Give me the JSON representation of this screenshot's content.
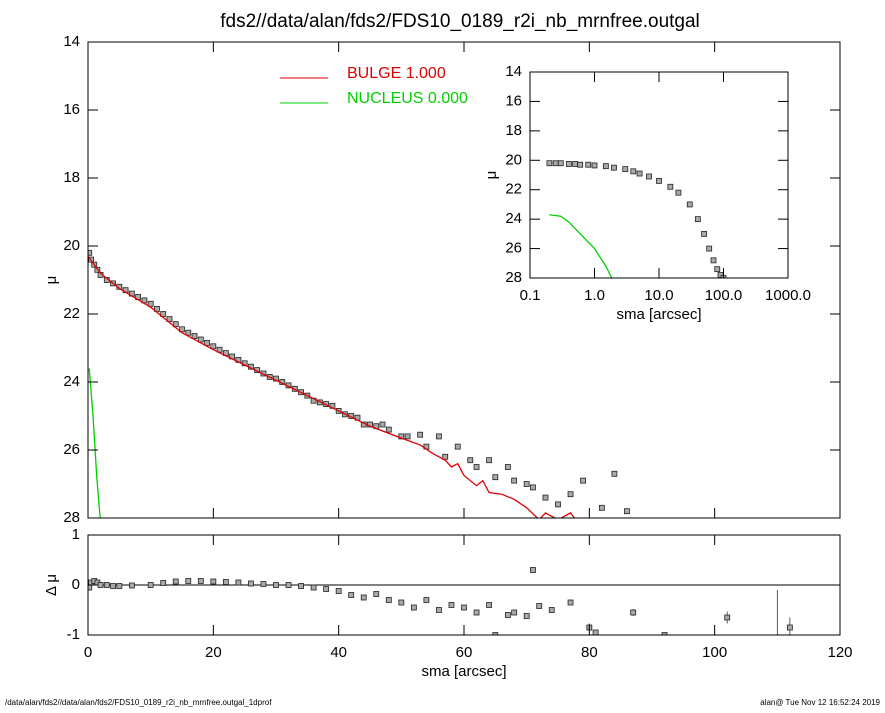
{
  "footer": {
    "left": "/data/alan/fds2//data/alan/fds2/FDS10_0189_r2i_nb_mrnfree.outgal_1dprof",
    "right": "alan@  Tue Nov 12 16:52:24 2019"
  },
  "chart_data": [
    {
      "type": "profile",
      "title": "fds2//data/alan/fds2/FDS10_0189_r2i_nb_mrnfree.outgal",
      "y_label": "μ",
      "ylim": [
        28,
        14
      ],
      "yticks": [
        14,
        16,
        18,
        20,
        22,
        24,
        26,
        28
      ],
      "points": {
        "x": [
          0.2,
          0.5,
          1,
          1.5,
          2,
          3,
          4,
          5,
          6,
          7,
          8,
          9,
          10,
          11,
          12,
          13,
          14,
          15,
          16,
          17,
          18,
          19,
          20,
          21,
          22,
          23,
          24,
          25,
          26,
          27,
          28,
          29,
          30,
          31,
          32,
          33,
          34,
          35,
          36,
          37,
          38,
          39,
          40,
          41,
          42,
          43,
          44,
          45,
          46,
          47,
          48,
          50,
          51,
          53,
          54,
          56,
          57,
          59,
          61,
          62,
          64,
          65,
          67,
          68,
          70,
          71,
          73,
          75,
          77,
          79,
          82,
          84,
          86
        ],
        "values": [
          20.2,
          20.4,
          20.55,
          20.7,
          20.85,
          21.0,
          21.1,
          21.2,
          21.3,
          21.4,
          21.5,
          21.6,
          21.7,
          21.85,
          22.0,
          22.15,
          22.3,
          22.45,
          22.55,
          22.65,
          22.75,
          22.85,
          22.95,
          23.05,
          23.15,
          23.25,
          23.35,
          23.45,
          23.55,
          23.65,
          23.75,
          23.85,
          23.9,
          24.0,
          24.1,
          24.2,
          24.3,
          24.4,
          24.55,
          24.6,
          24.65,
          24.7,
          24.85,
          24.95,
          25.0,
          25.05,
          25.25,
          25.25,
          25.3,
          25.25,
          25.4,
          25.6,
          25.6,
          25.55,
          25.9,
          25.6,
          26.2,
          25.9,
          26.3,
          26.5,
          26.3,
          26.8,
          26.5,
          26.9,
          27.0,
          27.1,
          27.4,
          27.6,
          27.3,
          26.9,
          27.7,
          26.7,
          27.8
        ]
      },
      "series": [
        {
          "name": "BULGE  1.000",
          "color": "#e00000",
          "x": [
            0,
            2,
            5,
            10,
            15,
            20,
            25,
            30,
            35,
            40,
            45,
            50,
            53,
            55,
            57,
            58,
            59,
            60,
            62,
            63,
            64,
            66,
            68,
            70,
            72,
            73,
            75,
            77,
            78
          ],
          "values": [
            20.3,
            20.8,
            21.25,
            21.8,
            22.55,
            23.05,
            23.5,
            23.95,
            24.4,
            24.85,
            25.3,
            25.65,
            25.85,
            26.1,
            26.3,
            26.5,
            26.4,
            26.75,
            27.05,
            26.9,
            27.25,
            27.3,
            27.45,
            27.7,
            28.05,
            27.85,
            28.05,
            27.85,
            28.1
          ]
        },
        {
          "name": "NUCLEUS  0.000",
          "color": "#00d000",
          "x": [
            0.2,
            0.5,
            0.8,
            1.1,
            1.4,
            1.8,
            2.0
          ],
          "values": [
            23.6,
            24.3,
            25.0,
            25.9,
            26.8,
            27.7,
            28.1
          ]
        }
      ]
    },
    {
      "type": "residual",
      "y_label": "Δ μ",
      "x_label": "sma [arcsec]",
      "xlim": [
        0,
        120
      ],
      "xticks": [
        0,
        20,
        40,
        60,
        80,
        100,
        120
      ],
      "ylim": [
        -1,
        1
      ],
      "yticks": [
        -1,
        0,
        1
      ],
      "x": [
        0.2,
        0.5,
        1,
        1.5,
        2,
        3,
        4,
        5,
        7,
        10,
        12,
        14,
        16,
        18,
        20,
        22,
        24,
        26,
        28,
        30,
        32,
        34,
        36,
        38,
        40,
        42,
        44,
        46,
        48,
        50,
        52,
        54,
        56,
        58,
        60,
        62,
        64,
        65,
        67,
        68,
        70,
        71,
        72,
        74,
        77,
        78,
        80,
        81,
        87,
        92,
        102,
        110,
        112
      ],
      "values": [
        -0.05,
        0.05,
        0.08,
        0.05,
        0.0,
        0,
        -0.02,
        -0.02,
        -0.01,
        0,
        0.04,
        0.07,
        0.08,
        0.08,
        0.07,
        0.06,
        0.05,
        0.03,
        0.02,
        0.0,
        0.0,
        -0.02,
        -0.05,
        -0.08,
        -0.12,
        -0.2,
        -0.25,
        -0.18,
        -0.3,
        -0.35,
        -0.45,
        -0.3,
        -0.5,
        -0.4,
        -0.45,
        -0.55,
        -0.4,
        -1.0,
        -0.6,
        -0.55,
        -0.62,
        0.3,
        -0.42,
        -0.5,
        -0.35,
        -1.05,
        -0.85,
        -0.95,
        -0.55,
        -1.0,
        -0.65,
        -1.4,
        -0.85
      ],
      "errors": [
        null,
        null,
        null,
        null,
        null,
        null,
        null,
        null,
        null,
        null,
        null,
        null,
        null,
        null,
        null,
        null,
        null,
        null,
        null,
        null,
        null,
        null,
        null,
        null,
        null,
        null,
        null,
        null,
        null,
        null,
        null,
        null,
        null,
        null,
        null,
        null,
        null,
        null,
        null,
        null,
        null,
        0.05,
        null,
        null,
        0.05,
        null,
        0.08,
        null,
        0.07,
        0.05,
        0.12,
        1.3,
        0.2
      ]
    },
    {
      "type": "profile-log",
      "y_label": "μ",
      "x_label": "sma [arcsec]",
      "log_x": true,
      "xlim": [
        0.1,
        1000
      ],
      "xticks": [
        0.1,
        {
          "value": 1,
          "label": "1.0"
        },
        {
          "value": 10,
          "label": "10.0"
        },
        {
          "value": 100,
          "label": "100.0"
        },
        {
          "value": 1000,
          "label": "1000.0"
        }
      ],
      "ylim": [
        28,
        14
      ],
      "yticks": [
        14,
        16,
        18,
        20,
        22,
        24,
        26,
        28
      ],
      "points": {
        "x": [
          0.2,
          0.25,
          0.3,
          0.4,
          0.5,
          0.6,
          0.8,
          1,
          1.5,
          2,
          3,
          4,
          5,
          7,
          10,
          15,
          20,
          30,
          40,
          50,
          60,
          70,
          80,
          90,
          100
        ],
        "values": [
          20.2,
          20.2,
          20.2,
          20.25,
          20.25,
          20.3,
          20.3,
          20.35,
          20.4,
          20.5,
          20.6,
          20.75,
          20.9,
          21.1,
          21.4,
          21.8,
          22.2,
          23.0,
          24.0,
          25.0,
          26.0,
          26.8,
          27.4,
          27.8,
          28.0
        ]
      },
      "series": [
        {
          "color": "#00d000",
          "x": [
            0.2,
            0.3,
            0.4,
            0.6,
            1,
            1.5,
            2
          ],
          "values": [
            23.7,
            23.8,
            24.2,
            25.0,
            26.0,
            27.2,
            28.3
          ]
        }
      ]
    }
  ]
}
